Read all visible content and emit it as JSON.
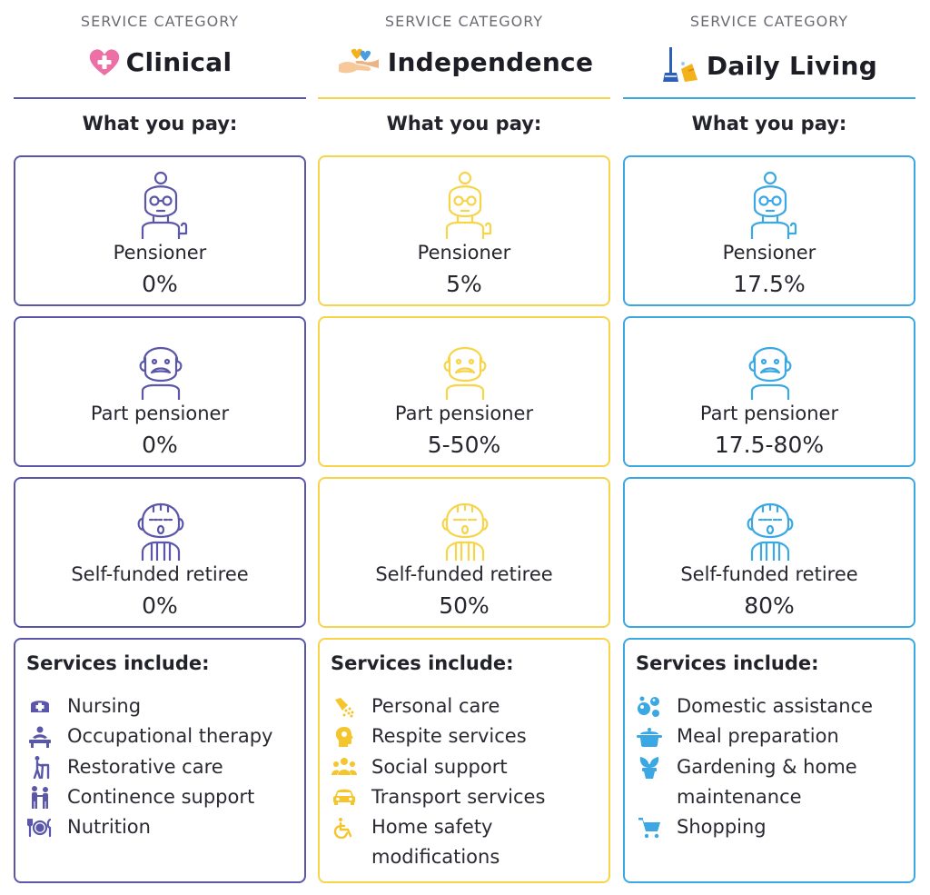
{
  "columns": [
    {
      "kicker": "SERVICE CATEGORY",
      "title": "Clinical",
      "icon": "heart-cross-icon",
      "accent": "#5b57a8",
      "pay_label": "What you pay:",
      "tiers": [
        {
          "name": "Pensioner",
          "value": "0%",
          "avatar": "grandmother-icon"
        },
        {
          "name": "Part pensioner",
          "value": "0%",
          "avatar": "grandfather-icon"
        },
        {
          "name": "Self-funded retiree",
          "value": "0%",
          "avatar": "old-man-icon"
        }
      ],
      "services_title": "Services include:",
      "services": [
        {
          "label": "Nursing",
          "icon": "nurse-cap-icon"
        },
        {
          "label": "Occupational therapy",
          "icon": "therapy-icon"
        },
        {
          "label": "Restorative care",
          "icon": "walking-frame-icon"
        },
        {
          "label": "Continence support",
          "icon": "assist-person-icon"
        },
        {
          "label": "Nutrition",
          "icon": "plate-cutlery-icon"
        }
      ]
    },
    {
      "kicker": "SERVICE CATEGORY",
      "title": "Independence",
      "icon": "hands-hearts-icon",
      "accent": "#f7d44a",
      "pay_label": "What you pay:",
      "tiers": [
        {
          "name": "Pensioner",
          "value": "5%",
          "avatar": "grandmother-icon"
        },
        {
          "name": "Part pensioner",
          "value": "5-50%",
          "avatar": "grandfather-icon"
        },
        {
          "name": "Self-funded retiree",
          "value": "50%",
          "avatar": "old-man-icon"
        }
      ],
      "services_title": "Services include:",
      "services": [
        {
          "label": "Personal care",
          "icon": "shower-icon"
        },
        {
          "label": "Respite services",
          "icon": "head-icon"
        },
        {
          "label": "Social support",
          "icon": "people-group-icon"
        },
        {
          "label": "Transport services",
          "icon": "car-icon"
        },
        {
          "label": "Home safety modifications",
          "icon": "wheelchair-icon"
        }
      ]
    },
    {
      "kicker": "SERVICE CATEGORY",
      "title": "Daily Living",
      "icon": "broom-icon",
      "accent": "#3ba7e3",
      "pay_label": "What you pay:",
      "tiers": [
        {
          "name": "Pensioner",
          "value": "17.5%",
          "avatar": "grandmother-icon"
        },
        {
          "name": "Part pensioner",
          "value": "17.5-80%",
          "avatar": "grandfather-icon"
        },
        {
          "name": "Self-funded retiree",
          "value": "80%",
          "avatar": "old-man-icon"
        }
      ],
      "services_title": "Services include:",
      "services": [
        {
          "label": "Domestic assistance",
          "icon": "bubbles-icon"
        },
        {
          "label": "Meal preparation",
          "icon": "cooking-pot-icon"
        },
        {
          "label": "Gardening & home maintenance",
          "icon": "potted-plant-icon"
        },
        {
          "label": "Shopping",
          "icon": "shopping-cart-icon"
        }
      ]
    }
  ]
}
